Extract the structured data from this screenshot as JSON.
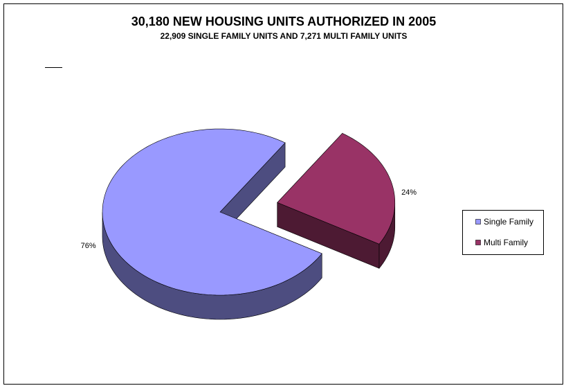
{
  "chart_data": {
    "type": "pie",
    "title": "30,180 NEW HOUSING UNITS AUTHORIZED IN 2005",
    "subtitle": "22,909 SINGLE FAMILY UNITS AND 7,271 MULTI FAMILY UNITS",
    "categories": [
      "Single Family",
      "Multi Family"
    ],
    "values": [
      76,
      24
    ],
    "value_labels": [
      "76%",
      "24%"
    ],
    "colors": [
      "#9999ff",
      "#993366"
    ],
    "legend": "right"
  }
}
